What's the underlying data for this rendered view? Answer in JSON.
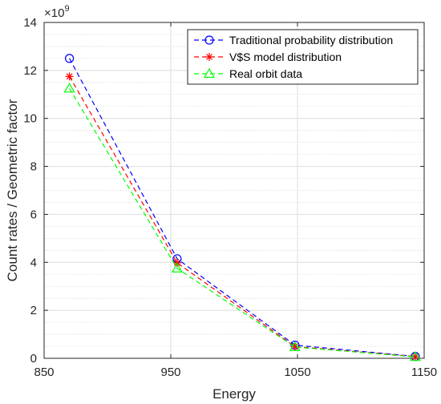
{
  "chart_data": {
    "type": "line",
    "x": [
      870,
      955,
      1048,
      1143
    ],
    "series": [
      {
        "name": "Traditional probability distribution",
        "values": [
          12.5,
          4.15,
          0.55,
          0.08
        ],
        "color": "#0000ff",
        "marker": "circle"
      },
      {
        "name": "V$S model distribution",
        "values": [
          11.75,
          3.98,
          0.49,
          0.07
        ],
        "color": "#ff0000",
        "marker": "star"
      },
      {
        "name": "Real orbit data",
        "values": [
          11.25,
          3.75,
          0.47,
          0.06
        ],
        "color": "#00ff00",
        "marker": "triangle"
      }
    ],
    "xlabel": "Energy",
    "ylabel": "Count rates / Geometric factor",
    "y_exponent_label": "×10",
    "y_exponent_power": "9",
    "xlim": [
      850,
      1150
    ],
    "ylim": [
      0,
      14
    ],
    "xticks": [
      850,
      950,
      1050,
      1150
    ],
    "yticks": [
      0,
      2,
      4,
      6,
      8,
      10,
      12,
      14
    ],
    "grid": true,
    "minor_grid_y": true,
    "legend_position": "top-right"
  }
}
